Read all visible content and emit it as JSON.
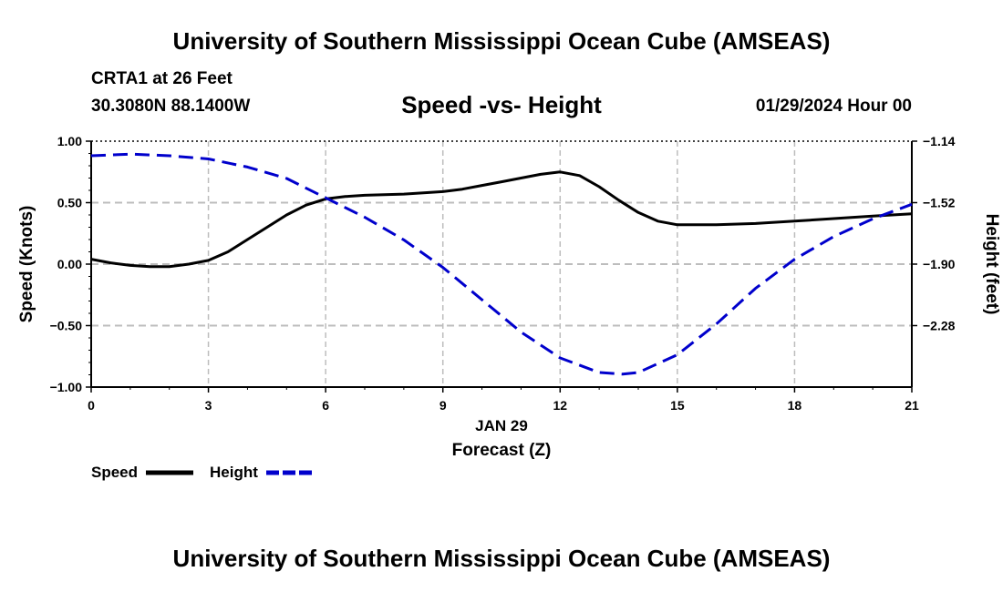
{
  "header": {
    "title": "University of Southern Mississippi Ocean Cube (AMSEAS)",
    "station": "CRTA1 at 26 Feet",
    "coordinates": "30.3080N  88.1400W",
    "subtitle": "Speed -vs- Height",
    "datetime": "01/29/2024 Hour 00"
  },
  "footer": {
    "title": "University of Southern Mississippi Ocean Cube (AMSEAS)"
  },
  "chart_data": {
    "type": "line",
    "xlabel": "Forecast (Z)",
    "xdate_label": "JAN 29",
    "ylabel_left": "Speed (Knots)",
    "ylabel_right": "Height (feet)",
    "xlim": [
      0,
      21
    ],
    "ylim_left": [
      -1.0,
      1.0
    ],
    "ylim_right": [
      -2.66,
      -1.14
    ],
    "x_ticks": [
      0,
      3,
      6,
      9,
      12,
      15,
      18,
      21
    ],
    "x_tick_labels": [
      "0",
      "3",
      "6",
      "9",
      "12",
      "15",
      "18",
      "21"
    ],
    "y_left_ticks": [
      1.0,
      0.5,
      0.0,
      -0.5,
      -1.0
    ],
    "y_left_tick_labels": [
      "1.00",
      "0.50",
      "0.00",
      "−0.50",
      "−1.00"
    ],
    "y_right_ticks": [
      -1.14,
      -1.52,
      -1.9,
      -2.28
    ],
    "y_right_tick_labels": [
      "−1.14",
      "−1.52",
      "−1.90",
      "−2.28"
    ],
    "grid": true,
    "series": [
      {
        "name": "Speed",
        "axis": "left",
        "style": "solid",
        "color": "#000000",
        "x": [
          0,
          0.5,
          1,
          1.5,
          2,
          2.5,
          3,
          3.5,
          4,
          4.5,
          5,
          5.5,
          6,
          6.5,
          7,
          8,
          9,
          9.5,
          10,
          10.5,
          11,
          11.5,
          12,
          12.5,
          13,
          13.5,
          14,
          14.5,
          15,
          16,
          17,
          18,
          19,
          20,
          21
        ],
        "values": [
          0.04,
          0.01,
          -0.01,
          -0.02,
          -0.02,
          0.0,
          0.03,
          0.1,
          0.2,
          0.3,
          0.4,
          0.48,
          0.53,
          0.55,
          0.56,
          0.57,
          0.59,
          0.61,
          0.64,
          0.67,
          0.7,
          0.73,
          0.75,
          0.72,
          0.63,
          0.52,
          0.42,
          0.35,
          0.32,
          0.32,
          0.33,
          0.35,
          0.37,
          0.39,
          0.41
        ]
      },
      {
        "name": "Height",
        "axis": "right",
        "style": "dashed",
        "color": "#0000cc",
        "x": [
          0,
          1,
          2,
          3,
          4,
          5,
          6,
          7,
          8,
          9,
          10,
          11,
          12,
          13,
          13.6,
          14,
          15,
          16,
          17,
          18,
          19,
          20,
          21
        ],
        "values": [
          -1.23,
          -1.22,
          -1.23,
          -1.25,
          -1.3,
          -1.37,
          -1.49,
          -1.61,
          -1.75,
          -1.92,
          -2.12,
          -2.32,
          -2.48,
          -2.57,
          -2.58,
          -2.57,
          -2.46,
          -2.27,
          -2.05,
          -1.87,
          -1.73,
          -1.62,
          -1.53
        ]
      }
    ],
    "legend": {
      "position": "bottom-left",
      "items": [
        {
          "label": "Speed",
          "color": "#000000",
          "style": "solid"
        },
        {
          "label": "Height",
          "color": "#0000cc",
          "style": "dashed"
        }
      ]
    }
  }
}
